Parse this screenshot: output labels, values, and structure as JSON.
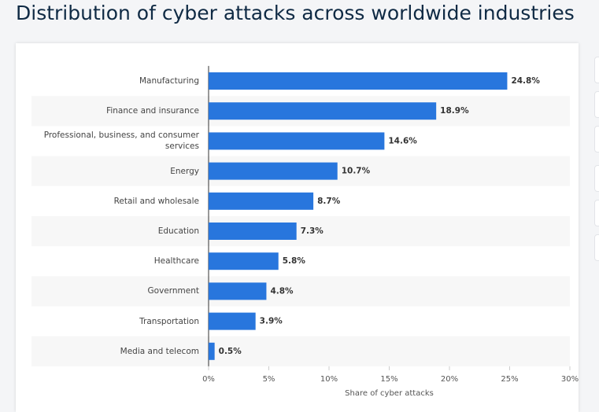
{
  "chart_data": {
    "type": "bar",
    "orientation": "horizontal",
    "title": "Distribution of cyber attacks across worldwide industries",
    "x_label": "Share of cyber attacks",
    "categories": [
      "Manufacturing",
      "Finance and insurance",
      "Professional, business, and consumer services",
      "Energy",
      "Retail and wholesale",
      "Education",
      "Healthcare",
      "Government",
      "Transportation",
      "Media and telecom"
    ],
    "values": [
      24.8,
      18.9,
      14.6,
      10.7,
      8.7,
      7.3,
      5.8,
      4.8,
      3.9,
      0.5
    ],
    "value_labels": [
      "24.8%",
      "18.9%",
      "14.6%",
      "10.7%",
      "8.7%",
      "7.3%",
      "5.8%",
      "4.8%",
      "3.9%",
      "0.5%"
    ],
    "color": "#2876dd",
    "xlim": [
      0,
      30
    ],
    "xticks": [
      {
        "value": 0,
        "label": "0%"
      },
      {
        "value": 5,
        "label": "5%"
      },
      {
        "value": 10,
        "label": "10%"
      },
      {
        "value": 15,
        "label": "15%"
      },
      {
        "value": 20,
        "label": "20%"
      },
      {
        "value": 25,
        "label": "25%"
      },
      {
        "value": 30,
        "label": "30%"
      }
    ]
  }
}
